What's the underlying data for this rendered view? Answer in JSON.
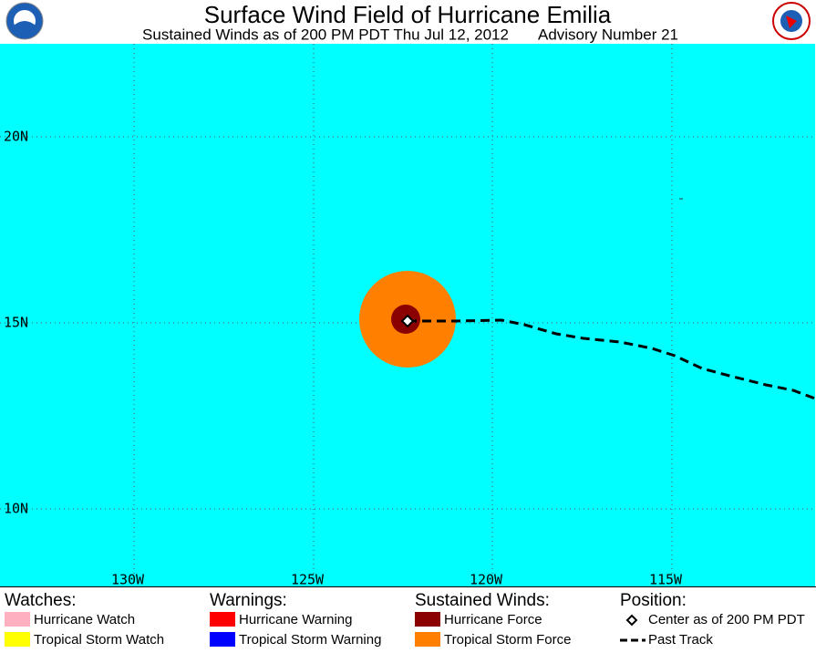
{
  "header": {
    "title": "Surface Wind Field of Hurricane Emilia",
    "subtitle": "Sustained Winds as of 200 PM PDT Thu Jul 12, 2012",
    "advisory": "Advisory Number 21"
  },
  "map": {
    "latitude_labels": [
      "20N",
      "15N",
      "10N"
    ],
    "longitude_labels": [
      "130W",
      "125W",
      "120W",
      "115W"
    ]
  },
  "legend": {
    "watches": {
      "heading": "Watches:",
      "items": [
        "Hurricane Watch",
        "Tropical Storm Watch"
      ]
    },
    "warnings": {
      "heading": "Warnings:",
      "items": [
        "Hurricane Warning",
        "Tropical Storm Warning"
      ]
    },
    "winds": {
      "heading": "Sustained Winds:",
      "items": [
        "Hurricane Force",
        "Tropical Storm Force"
      ]
    },
    "position": {
      "heading": "Position:",
      "items": [
        "Center as of 200 PM PDT",
        "Past Track"
      ]
    }
  }
}
